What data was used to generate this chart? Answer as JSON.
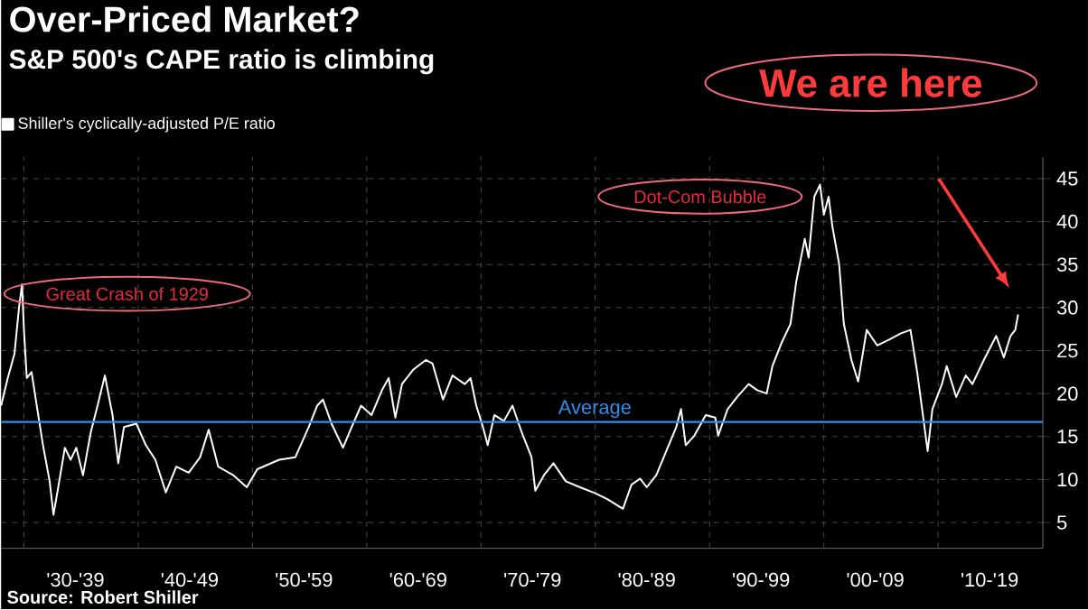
{
  "chart_data": {
    "type": "line",
    "title": "Over-Priced Market?",
    "subtitle": "S&P 500's CAPE ratio is climbing",
    "x": [
      "1928-01",
      "1928-08",
      "1929-03",
      "1929-08",
      "1929-11",
      "1930-01",
      "1930-04",
      "1930-09",
      "1931-03",
      "1931-09",
      "1932-04",
      "1932-08",
      "1933-01",
      "1933-08",
      "1934-02",
      "1934-08",
      "1935-03",
      "1935-11",
      "1936-07",
      "1937-02",
      "1937-10",
      "1938-04",
      "1938-10",
      "1939-11",
      "1940-09",
      "1941-07",
      "1942-06",
      "1943-05",
      "1944-06",
      "1945-06",
      "1946-03",
      "1947-01",
      "1948-05",
      "1949-07",
      "1950-06",
      "1952-05",
      "1953-10",
      "1954-12",
      "1955-09",
      "1956-03",
      "1956-12",
      "1957-12",
      "1958-08",
      "1959-07",
      "1960-06",
      "1961-05",
      "1961-12",
      "1962-07",
      "1963-02",
      "1964-02",
      "1965-03",
      "1965-10",
      "1966-09",
      "1967-07",
      "1968-08",
      "1969-02",
      "1969-08",
      "1970-03",
      "1970-08",
      "1971-03",
      "1972-01",
      "1972-10",
      "1973-08",
      "1974-06",
      "1974-10",
      "1975-07",
      "1976-05",
      "1977-06",
      "1978-09",
      "1980-01",
      "1981-02",
      "1982-06",
      "1983-03",
      "1983-12",
      "1984-07",
      "1985-05",
      "1986-05",
      "1987-02",
      "1987-07",
      "1987-12",
      "1988-09",
      "1989-09",
      "1990-07",
      "1990-10",
      "1991-08",
      "1992-06",
      "1993-06",
      "1994-03",
      "1995-01",
      "1995-07",
      "1996-05",
      "1997-02",
      "1997-08",
      "1998-05",
      "1998-09",
      "1999-03",
      "1999-09",
      "2000-01",
      "2000-06",
      "2000-10",
      "2001-05",
      "2001-10",
      "2002-06",
      "2003-01",
      "2003-10",
      "2004-09",
      "2005-10",
      "2006-10",
      "2007-08",
      "2008-03",
      "2008-09",
      "2009-02",
      "2009-07",
      "2010-05",
      "2010-10",
      "2011-08",
      "2012-06",
      "2013-01",
      "2014-01",
      "2015-02",
      "2015-10",
      "2016-05",
      "2016-10",
      "2017-01"
    ],
    "series": [
      {
        "name": "Shiller's cyclically-adjusted P/E ratio",
        "color": "#ffffff",
        "values": [
          18.6,
          21.8,
          24.6,
          30.2,
          32.7,
          27.4,
          21.8,
          22.5,
          18.2,
          14.0,
          9.8,
          5.9,
          9.1,
          13.7,
          12.3,
          13.7,
          10.5,
          15.4,
          18.9,
          22.1,
          17.5,
          11.9,
          16.1,
          16.5,
          14.0,
          12.3,
          8.5,
          11.5,
          10.8,
          12.6,
          15.8,
          11.5,
          10.5,
          9.1,
          11.2,
          12.3,
          12.6,
          16.1,
          18.6,
          19.3,
          16.5,
          13.7,
          15.8,
          18.6,
          17.5,
          20.4,
          21.8,
          17.2,
          21.1,
          22.8,
          23.9,
          23.5,
          19.3,
          22.1,
          21.1,
          21.8,
          18.6,
          16.1,
          14.0,
          17.5,
          16.8,
          18.6,
          15.4,
          12.6,
          8.7,
          10.5,
          11.9,
          9.8,
          9.1,
          8.4,
          7.7,
          6.6,
          9.4,
          10.1,
          9.1,
          10.5,
          13.7,
          16.1,
          18.2,
          14.0,
          15.1,
          17.5,
          17.2,
          15.1,
          18.2,
          19.6,
          21.1,
          20.4,
          20.0,
          23.2,
          26.0,
          28.1,
          33.0,
          38.0,
          35.8,
          42.9,
          44.3,
          40.8,
          42.9,
          39.4,
          35.1,
          28.1,
          23.9,
          21.4,
          27.4,
          25.6,
          26.3,
          27.0,
          27.4,
          22.5,
          17.5,
          13.3,
          18.2,
          21.1,
          23.2,
          19.6,
          22.1,
          21.1,
          23.9,
          26.7,
          24.2,
          26.7,
          27.4,
          29.2
        ]
      }
    ],
    "xlim": [
      "1928-01",
      "2019-03"
    ],
    "xticks": [
      {
        "value": "1930-01",
        "label": null
      },
      {
        "value": "1934-07",
        "label": "'30-'39"
      },
      {
        "value": "1940-01",
        "label": null
      },
      {
        "value": "1944-07",
        "label": "'40-'49"
      },
      {
        "value": "1950-01",
        "label": null
      },
      {
        "value": "1954-07",
        "label": "'50-'59"
      },
      {
        "value": "1960-01",
        "label": null
      },
      {
        "value": "1964-07",
        "label": "'60-'69"
      },
      {
        "value": "1970-01",
        "label": null
      },
      {
        "value": "1974-07",
        "label": "'70-'79"
      },
      {
        "value": "1980-01",
        "label": null
      },
      {
        "value": "1984-07",
        "label": "'80-'89"
      },
      {
        "value": "1990-01",
        "label": null
      },
      {
        "value": "1994-07",
        "label": "'90-'99"
      },
      {
        "value": "2000-01",
        "label": null
      },
      {
        "value": "2004-07",
        "label": "'00-'09"
      },
      {
        "value": "2010-01",
        "label": null
      },
      {
        "value": "2014-07",
        "label": "'10-'19"
      }
    ],
    "ylim": [
      2,
      47.5
    ],
    "yticks": [
      5,
      10,
      15,
      20,
      25,
      30,
      35,
      40,
      45
    ],
    "grid": true,
    "legend": "top left",
    "ref_lines": [
      {
        "axis": "y",
        "value": 16.7,
        "label": "Average",
        "color": "#2f8fea"
      }
    ],
    "annotations": [
      {
        "text": "Great Crash of 1929",
        "x": "1929-11",
        "y": 32.7
      },
      "Dot-Com Bubble",
      "We are here",
      "Source: Robert Shiller"
    ]
  }
}
